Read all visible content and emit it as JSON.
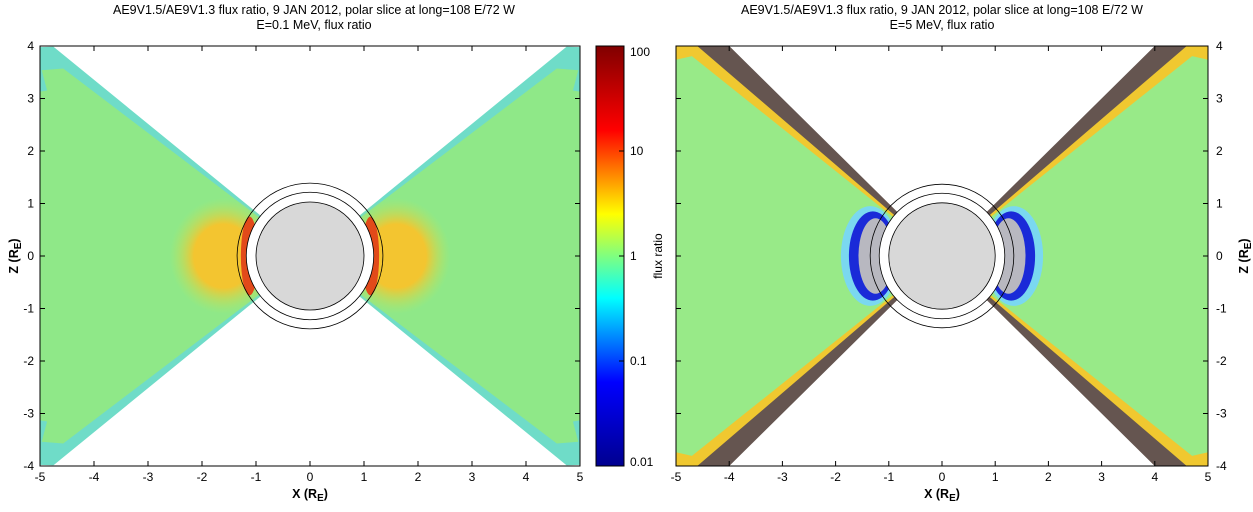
{
  "chart_data": [
    {
      "type": "heatmap",
      "title": "AE9V1.5/AE9V1.3 flux ratio, 9 JAN 2012, polar slice at long=108 E/72 W",
      "subtitle": "E=0.1 MeV, flux ratio",
      "xlabel": "X (R",
      "xlabel_sub": "E",
      "xlabel_close": ")",
      "ylabel": "Z (R",
      "ylabel_sub": "E",
      "ylabel_close": ")",
      "xlim": [
        -5,
        5
      ],
      "ylim": [
        -4,
        4
      ],
      "xticks": [
        "-5",
        "-4",
        "-3",
        "-2",
        "-1",
        "0",
        "1",
        "2",
        "3",
        "4",
        "5"
      ],
      "yticks": [
        "4",
        "3",
        "2",
        "1",
        "0",
        "-1",
        "-2",
        "-3",
        "-4"
      ],
      "y_axis_side": "left",
      "typical_ratio": 1,
      "peak_ratio_near_earth": 10,
      "inner_belt_ratio": 3,
      "colors": {
        "background": "#8fe888",
        "inner": "#f5c830",
        "peak": "#e24a1a",
        "edge": "#6fdcc8"
      }
    },
    {
      "type": "heatmap",
      "title": "AE9V1.5/AE9V1.3 flux ratio, 9 JAN 2012, polar slice at long=108 E/72 W",
      "subtitle": "E=5 MeV, flux ratio",
      "xlabel": "X (R",
      "xlabel_sub": "E",
      "xlabel_close": ")",
      "ylabel": "Z (R",
      "ylabel_sub": "E",
      "ylabel_close": ")",
      "xlim": [
        -5,
        5
      ],
      "ylim": [
        -4,
        4
      ],
      "xticks": [
        "-5",
        "-4",
        "-3",
        "-2",
        "-1",
        "0",
        "1",
        "2",
        "3",
        "4",
        "5"
      ],
      "yticks": [
        "4",
        "3",
        "2",
        "1",
        "0",
        "-1",
        "-2",
        "-3",
        "-4"
      ],
      "y_axis_side": "right",
      "typical_ratio": 1,
      "inner_belt_ratio": 0.02,
      "colors": {
        "background": "#98ea88",
        "edge": "#f0c830",
        "outer": "#655550",
        "inner": "#1a2ad8"
      }
    }
  ],
  "colorbar": {
    "label": "flux ratio",
    "scale": "log",
    "range": [
      0.01,
      100
    ],
    "ticks": [
      {
        "value": 100,
        "label": "100"
      },
      {
        "value": 10,
        "label": "10"
      },
      {
        "value": 1,
        "label": "1"
      },
      {
        "value": 0.1,
        "label": "0.1"
      },
      {
        "value": 0.01,
        "label": "0.01"
      }
    ],
    "stops": [
      "#00008f",
      "#0000ff",
      "#00ffff",
      "#ffff00",
      "#ff0000",
      "#800000"
    ]
  }
}
